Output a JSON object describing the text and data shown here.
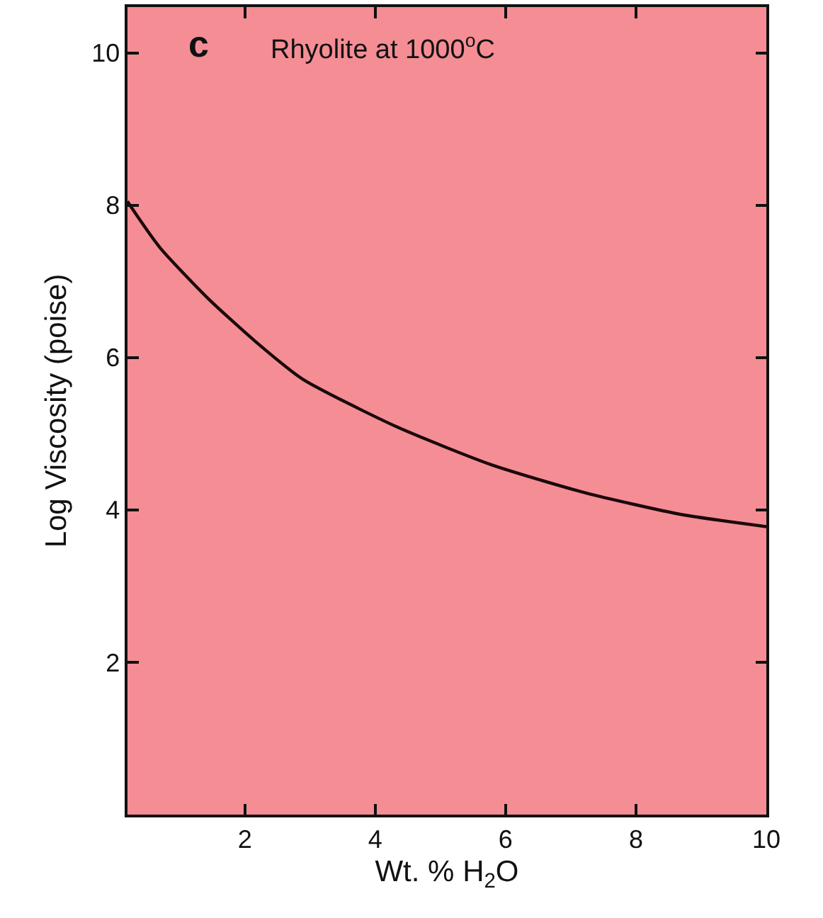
{
  "chart_data": {
    "type": "line",
    "xlabel": "Wt. % H$_{2}$O",
    "ylabel": "Log Viscosity (poise)",
    "annotations": [
      "c",
      "Rhyolite at 1000$^{o}$C"
    ],
    "x": [
      0.2,
      0.26,
      0.7,
      1.43,
      2.15,
      2.88,
      4.33,
      5.79,
      7.24,
      8.69,
      10
    ],
    "series": [
      {
        "color": "#1a0a0a",
        "values": [
          8.05,
          7.97,
          7.44,
          6.78,
          6.22,
          5.72,
          5.09,
          4.59,
          4.22,
          3.94,
          3.78
        ]
      }
    ],
    "xlim": [
      0.2,
      10
    ],
    "ylim": [
      0,
      10.6
    ],
    "xticks": [
      2,
      4,
      6,
      8,
      10
    ],
    "yticks": [
      2,
      4,
      6,
      8,
      10
    ],
    "grid": false,
    "legend": false,
    "marker": "none",
    "line_style": "solid"
  }
}
